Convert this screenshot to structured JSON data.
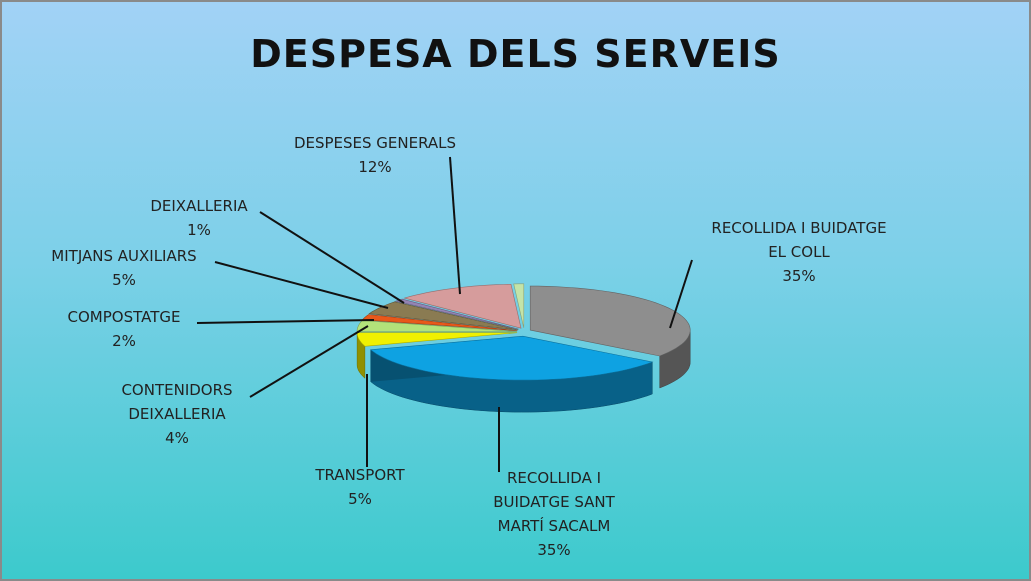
{
  "chart_data": {
    "type": "pie3d",
    "title": "DESPESA DELS SERVEIS",
    "categories": [
      "RECOLLIDA I BUIDATGE EL COLL",
      "RECOLLIDA I BUIDATGE SANT MARTÍ SACALM",
      "TRANSPORT",
      "CONTENIDORS DEIXALLERIA",
      "COMPOSTATGE",
      "MITJANS AUXILIARS",
      "DEIXALLERIA",
      "DESPESES GENERALS",
      null
    ],
    "values": [
      35,
      35,
      5,
      4,
      2,
      5,
      1,
      12,
      1
    ],
    "value_labels": [
      "35%",
      "35%",
      "5%",
      "4%",
      "2%",
      "5%",
      "1%",
      "12%",
      null
    ],
    "colors": [
      "#8e8e8e",
      "#0ea2e2",
      "#f0f000",
      "#b2e27a",
      "#e8581a",
      "#8a7b52",
      "#9484b4",
      "#d69c9c",
      "#c4e4a8"
    ]
  }
}
